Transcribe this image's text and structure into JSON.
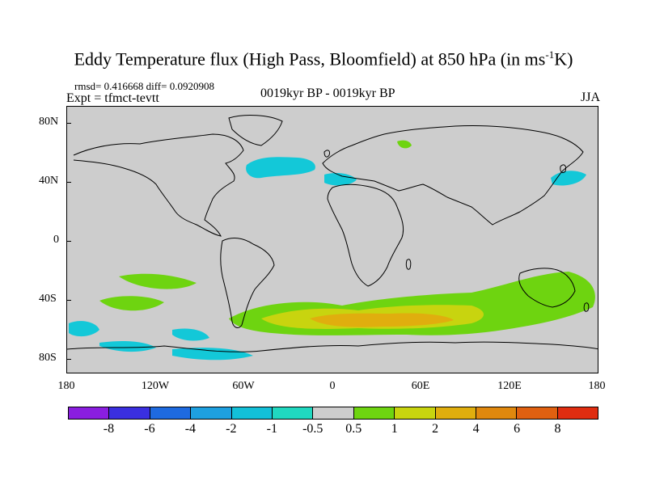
{
  "title": {
    "main": "Eddy Temperature flux (High Pass, Bloomfield) at 850 hPa (in ms",
    "superscript": "-1",
    "tail": "K)"
  },
  "stats": "rmsd= 0.416668 diff= 0.0920908",
  "experiment": "Expt = tfmct-tevtt",
  "period": "0019kyr BP - 0019kyr BP",
  "season": "JJA",
  "map": {
    "background_color": "#cdcdcd",
    "coastline_color": "#000000",
    "lat_labels": [
      "80N",
      "40N",
      "0",
      "40S",
      "80S"
    ],
    "lon_labels": [
      "180",
      "120W",
      "60W",
      "0",
      "60E",
      "120E",
      "180"
    ],
    "regions": [
      {
        "name": "north-atlantic-negative",
        "color": "#13c8d8"
      },
      {
        "name": "mediterranean-negative",
        "color": "#13c8d8"
      },
      {
        "name": "north-pacific-negative",
        "color": "#13c8d8"
      },
      {
        "name": "siberia-positive",
        "color": "#6ed410"
      },
      {
        "name": "southern-ocean-positive",
        "color": "#6ed410"
      },
      {
        "name": "southern-ocean-strong",
        "color": "#c8d40f"
      },
      {
        "name": "southern-ocean-max",
        "color": "#e0ae0e"
      },
      {
        "name": "south-pacific-negative",
        "color": "#13c8d8"
      }
    ]
  },
  "colorbar": {
    "colors": [
      "#8a1ee0",
      "#3a2fe0",
      "#1e6ae0",
      "#1ea0e0",
      "#13c0d8",
      "#20d8c0",
      "#cdcdcd",
      "#6ed410",
      "#c8d40f",
      "#e0ae0e",
      "#e0880e",
      "#e06010",
      "#e02d10"
    ],
    "labels": [
      "-8",
      "-6",
      "-4",
      "-2",
      "-1",
      "-0.5",
      "0.5",
      "1",
      "2",
      "4",
      "6",
      "8"
    ]
  }
}
